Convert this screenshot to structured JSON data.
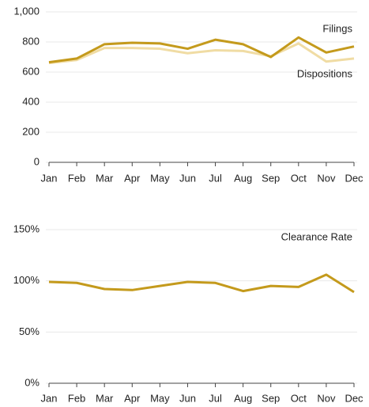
{
  "chart_data": [
    {
      "type": "line",
      "categories": [
        "Jan",
        "Feb",
        "Mar",
        "Apr",
        "May",
        "Jun",
        "Jul",
        "Aug",
        "Sep",
        "Oct",
        "Nov",
        "Dec"
      ],
      "series": [
        {
          "name": "Filings",
          "color": "#c49a1c",
          "values": [
            665,
            690,
            785,
            795,
            790,
            755,
            815,
            785,
            700,
            830,
            730,
            770
          ]
        },
        {
          "name": "Dispositions",
          "color": "#f0dca4",
          "values": [
            660,
            680,
            760,
            760,
            755,
            725,
            745,
            740,
            705,
            790,
            670,
            690
          ]
        }
      ],
      "ylim": [
        0,
        1000
      ],
      "yticks": [
        0,
        200,
        400,
        600,
        800,
        {
          "value": 1000,
          "label": "1,000"
        }
      ],
      "grid": true
    },
    {
      "type": "line",
      "categories": [
        "Jan",
        "Feb",
        "Mar",
        "Apr",
        "May",
        "Jun",
        "Jul",
        "Aug",
        "Sep",
        "Oct",
        "Nov",
        "Dec"
      ],
      "series": [
        {
          "name": "Clearance Rate",
          "color": "#c49a1c",
          "values": [
            99,
            98,
            92,
            91,
            95,
            99,
            98,
            90,
            95,
            94,
            106,
            89
          ]
        }
      ],
      "ylim": [
        0,
        150
      ],
      "yticks": [
        {
          "value": 0,
          "label": "0%"
        },
        {
          "value": 50,
          "label": "50%"
        },
        {
          "value": 100,
          "label": "100%"
        },
        {
          "value": 150,
          "label": "150%"
        }
      ],
      "grid": true
    }
  ]
}
